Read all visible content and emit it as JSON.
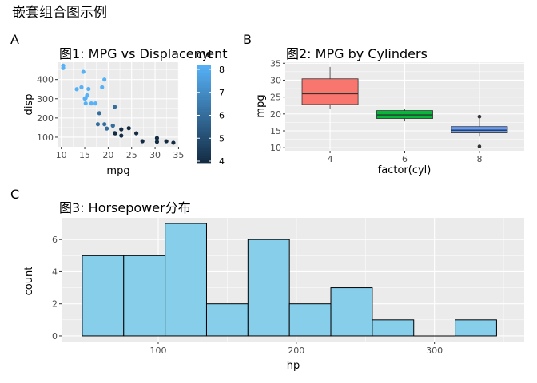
{
  "figure_title": "嵌套组合图示例",
  "panel_tags": {
    "a": "A",
    "b": "B",
    "c": "C"
  },
  "chart_data": [
    {
      "type": "scatter",
      "title": "图1: MPG vs Displacement",
      "xlabel": "mpg",
      "ylabel": "disp",
      "xlim": [
        9.2,
        35.1
      ],
      "ylim": [
        50,
        490
      ],
      "xticks": [
        10,
        15,
        20,
        25,
        30,
        35
      ],
      "yticks": [
        100,
        200,
        300,
        400
      ],
      "grid": true,
      "color_legend": {
        "title": "cyl",
        "ticks": [
          4,
          5,
          6,
          7,
          8
        ],
        "range": [
          4,
          8
        ],
        "low_color": "#132B43",
        "high_color": "#56B1F7"
      },
      "points": [
        {
          "x": 21.0,
          "y": 160.0,
          "cyl": 6
        },
        {
          "x": 21.0,
          "y": 160.0,
          "cyl": 6
        },
        {
          "x": 22.8,
          "y": 108.0,
          "cyl": 4
        },
        {
          "x": 21.4,
          "y": 258.0,
          "cyl": 6
        },
        {
          "x": 18.7,
          "y": 360.0,
          "cyl": 8
        },
        {
          "x": 18.1,
          "y": 225.0,
          "cyl": 6
        },
        {
          "x": 14.3,
          "y": 360.0,
          "cyl": 8
        },
        {
          "x": 24.4,
          "y": 146.7,
          "cyl": 4
        },
        {
          "x": 22.8,
          "y": 140.8,
          "cyl": 4
        },
        {
          "x": 19.2,
          "y": 167.6,
          "cyl": 6
        },
        {
          "x": 17.8,
          "y": 167.6,
          "cyl": 6
        },
        {
          "x": 16.4,
          "y": 275.8,
          "cyl": 8
        },
        {
          "x": 17.3,
          "y": 275.8,
          "cyl": 8
        },
        {
          "x": 15.2,
          "y": 275.8,
          "cyl": 8
        },
        {
          "x": 10.4,
          "y": 472.0,
          "cyl": 8
        },
        {
          "x": 10.4,
          "y": 460.0,
          "cyl": 8
        },
        {
          "x": 14.7,
          "y": 440.0,
          "cyl": 8
        },
        {
          "x": 32.4,
          "y": 78.7,
          "cyl": 4
        },
        {
          "x": 30.4,
          "y": 75.7,
          "cyl": 4
        },
        {
          "x": 33.9,
          "y": 71.1,
          "cyl": 4
        },
        {
          "x": 21.5,
          "y": 120.1,
          "cyl": 4
        },
        {
          "x": 15.5,
          "y": 318.0,
          "cyl": 8
        },
        {
          "x": 15.2,
          "y": 304.0,
          "cyl": 8
        },
        {
          "x": 13.3,
          "y": 350.0,
          "cyl": 8
        },
        {
          "x": 19.2,
          "y": 400.0,
          "cyl": 8
        },
        {
          "x": 27.3,
          "y": 79.0,
          "cyl": 4
        },
        {
          "x": 26.0,
          "y": 120.3,
          "cyl": 4
        },
        {
          "x": 30.4,
          "y": 95.1,
          "cyl": 4
        },
        {
          "x": 15.8,
          "y": 351.0,
          "cyl": 8
        },
        {
          "x": 19.7,
          "y": 145.0,
          "cyl": 6
        },
        {
          "x": 15.0,
          "y": 301.0,
          "cyl": 8
        },
        {
          "x": 21.4,
          "y": 121.0,
          "cyl": 4
        }
      ]
    },
    {
      "type": "box",
      "title": "图2: MPG by Cylinders",
      "xlabel": "factor(cyl)",
      "ylabel": "mpg",
      "ylim": [
        9.1,
        35.3
      ],
      "yticks": [
        10,
        15,
        20,
        25,
        30,
        35
      ],
      "grid": true,
      "boxes": [
        {
          "label": "4",
          "color": "#F8766D",
          "q1": 22.8,
          "median": 26.0,
          "q3": 30.4,
          "whisker_low": 21.4,
          "whisker_high": 33.9,
          "outliers": []
        },
        {
          "label": "6",
          "color": "#00BA38",
          "q1": 18.65,
          "median": 19.7,
          "q3": 21.0,
          "whisker_low": 17.8,
          "whisker_high": 21.4,
          "outliers": []
        },
        {
          "label": "8",
          "color": "#619CFF",
          "q1": 14.4,
          "median": 15.2,
          "q3": 16.25,
          "whisker_low": 13.3,
          "whisker_high": 18.7,
          "outliers": [
            10.4,
            19.2
          ]
        }
      ]
    },
    {
      "type": "bar",
      "title": "图3: Horsepower分布",
      "xlabel": "hp",
      "ylabel": "count",
      "xlim": [
        30,
        365
      ],
      "ylim": [
        -0.35,
        7.35
      ],
      "xticks": [
        100,
        200,
        300
      ],
      "yticks": [
        0,
        2,
        4,
        6
      ],
      "grid": true,
      "fill": "#87CEEB",
      "edge": "#000000",
      "bins": [
        {
          "start": 45,
          "end": 75,
          "count": 5
        },
        {
          "start": 75,
          "end": 105,
          "count": 5
        },
        {
          "start": 105,
          "end": 135,
          "count": 7
        },
        {
          "start": 135,
          "end": 165,
          "count": 2
        },
        {
          "start": 165,
          "end": 195,
          "count": 6
        },
        {
          "start": 195,
          "end": 225,
          "count": 2
        },
        {
          "start": 225,
          "end": 255,
          "count": 3
        },
        {
          "start": 255,
          "end": 285,
          "count": 1
        },
        {
          "start": 285,
          "end": 315,
          "count": 0
        },
        {
          "start": 315,
          "end": 345,
          "count": 1
        }
      ]
    }
  ]
}
